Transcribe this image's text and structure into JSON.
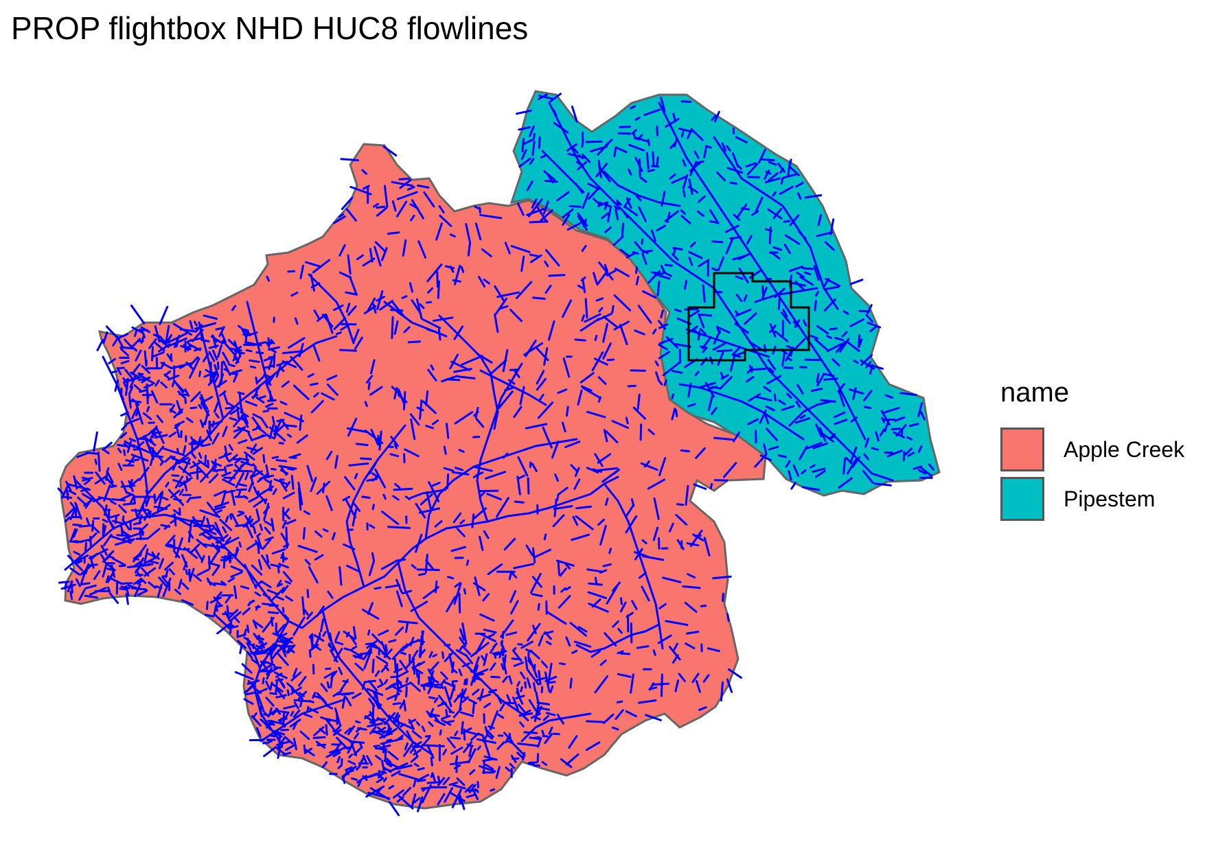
{
  "title": "PROP flightbox NHD HUC8 flowlines",
  "legend": {
    "title": "name",
    "items": [
      {
        "label": "Apple Creek",
        "color": "#F8766D"
      },
      {
        "label": "Pipestem",
        "color": "#00BFC4"
      }
    ]
  },
  "colors": {
    "flowline": "#0000FF",
    "basin_border": "#666666",
    "flightbox_outline": "#000000"
  }
}
